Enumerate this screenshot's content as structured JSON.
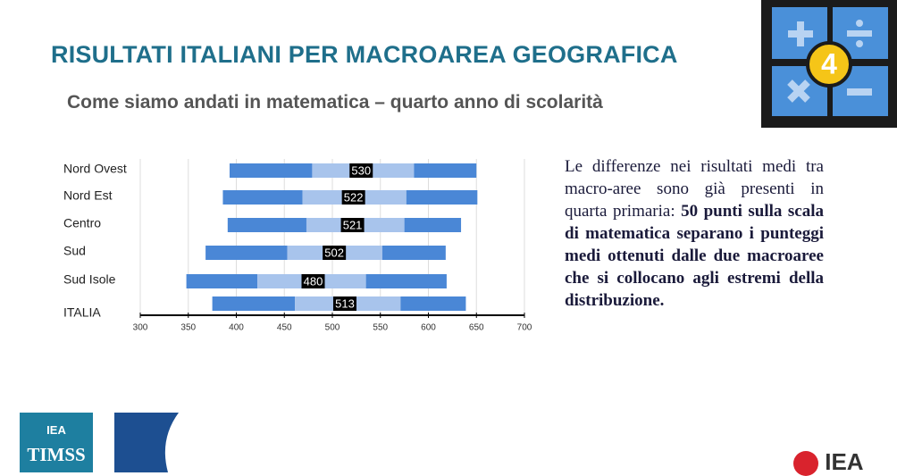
{
  "header": {
    "title": "RISULTATI ITALIANI PER MACROAREA GEOGRAFICA",
    "subtitle": "Come siamo andati in matematica – quarto anno di scolarità",
    "badge": "4"
  },
  "chart_data": {
    "type": "percentile-bar",
    "categories": [
      "Nord Ovest",
      "Nord Est",
      "Centro",
      "Sud",
      "Sud Isole",
      "ITALIA"
    ],
    "p5": [
      393,
      386,
      391,
      368,
      348,
      375
    ],
    "p25": [
      479,
      469,
      473,
      453,
      422,
      461
    ],
    "p75": [
      585,
      577,
      575,
      552,
      535,
      571
    ],
    "p95": [
      650,
      651,
      634,
      618,
      619,
      639
    ],
    "values": [
      530,
      522,
      521,
      502,
      480,
      513
    ],
    "outer_color": "#4a87d6",
    "inner_color": "#a8c4ec",
    "mean_color": "#000000",
    "xlim": [
      300,
      700
    ],
    "xticks": [
      300,
      350,
      400,
      450,
      500,
      550,
      600,
      650,
      700
    ],
    "grid": true
  },
  "text": {
    "normal": "Le differenze nei risultati medi tra macro-aree sono già presenti in quarta primaria:",
    "bold": "50 punti sulla scala di matematica separano i punteggi medi ottenuti dalle due macroaree che si collocano agli estremi della distribuzione."
  },
  "footer": {
    "left_logo_top": "IEA",
    "left_logo_bottom": "TIMSS",
    "right_logo": "IEA"
  }
}
